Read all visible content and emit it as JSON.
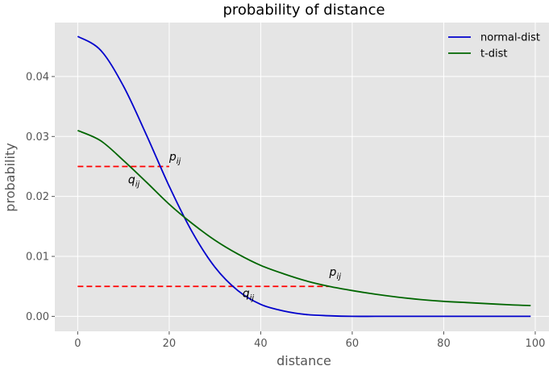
{
  "chart_data": {
    "type": "line",
    "title": "probability of distance",
    "xlabel": "distance",
    "ylabel": "probability",
    "xlim": [
      -5,
      103
    ],
    "ylim": [
      -0.0025,
      0.049
    ],
    "xticks": [
      0,
      20,
      40,
      60,
      80,
      100
    ],
    "yticks": [
      0.0,
      0.01,
      0.02,
      0.03,
      0.04
    ],
    "ytick_labels": [
      "0.00",
      "0.01",
      "0.02",
      "0.03",
      "0.04"
    ],
    "grid": true,
    "legend_position": "top-right",
    "series": [
      {
        "name": "normal-dist",
        "color": "#0000cc",
        "x": [
          0,
          5,
          10,
          15,
          20,
          25,
          30,
          35,
          40,
          45,
          50,
          55,
          60,
          65,
          70,
          80,
          90,
          99
        ],
        "y": [
          0.0467,
          0.0444,
          0.0384,
          0.0303,
          0.0217,
          0.0141,
          0.0082,
          0.0043,
          0.002,
          0.0009,
          0.0003,
          0.0001,
          0.0,
          0.0,
          0.0,
          0.0,
          0.0,
          0.0
        ]
      },
      {
        "name": "t-dist",
        "color": "#006600",
        "x": [
          0,
          5,
          10,
          15,
          20,
          25,
          30,
          35,
          40,
          45,
          50,
          55,
          60,
          65,
          70,
          75,
          80,
          85,
          90,
          95,
          99
        ],
        "y": [
          0.031,
          0.0293,
          0.026,
          0.0224,
          0.0187,
          0.0155,
          0.0127,
          0.0104,
          0.0085,
          0.0071,
          0.0059,
          0.005,
          0.0043,
          0.0037,
          0.0032,
          0.0028,
          0.0025,
          0.0023,
          0.0021,
          0.0019,
          0.0018
        ]
      }
    ],
    "reference_lines": [
      {
        "color": "#ff0000",
        "style": "dashed",
        "x": [
          0,
          20
        ],
        "y": 0.025
      },
      {
        "color": "#ff0000",
        "style": "dashed",
        "x": [
          0,
          55
        ],
        "y": 0.005
      }
    ],
    "annotations": [
      {
        "base": "p",
        "sub": "ij",
        "x": 20,
        "y": 0.026
      },
      {
        "base": "q",
        "sub": "ij",
        "x": 11,
        "y": 0.0222
      },
      {
        "base": "p",
        "sub": "ij",
        "x": 55,
        "y": 0.0068
      },
      {
        "base": "q",
        "sub": "ij",
        "x": 36,
        "y": 0.0032
      }
    ]
  },
  "colors": {
    "plot_background": "#e5e5e5",
    "grid": "#ffffff",
    "page_background": "#ffffff"
  }
}
